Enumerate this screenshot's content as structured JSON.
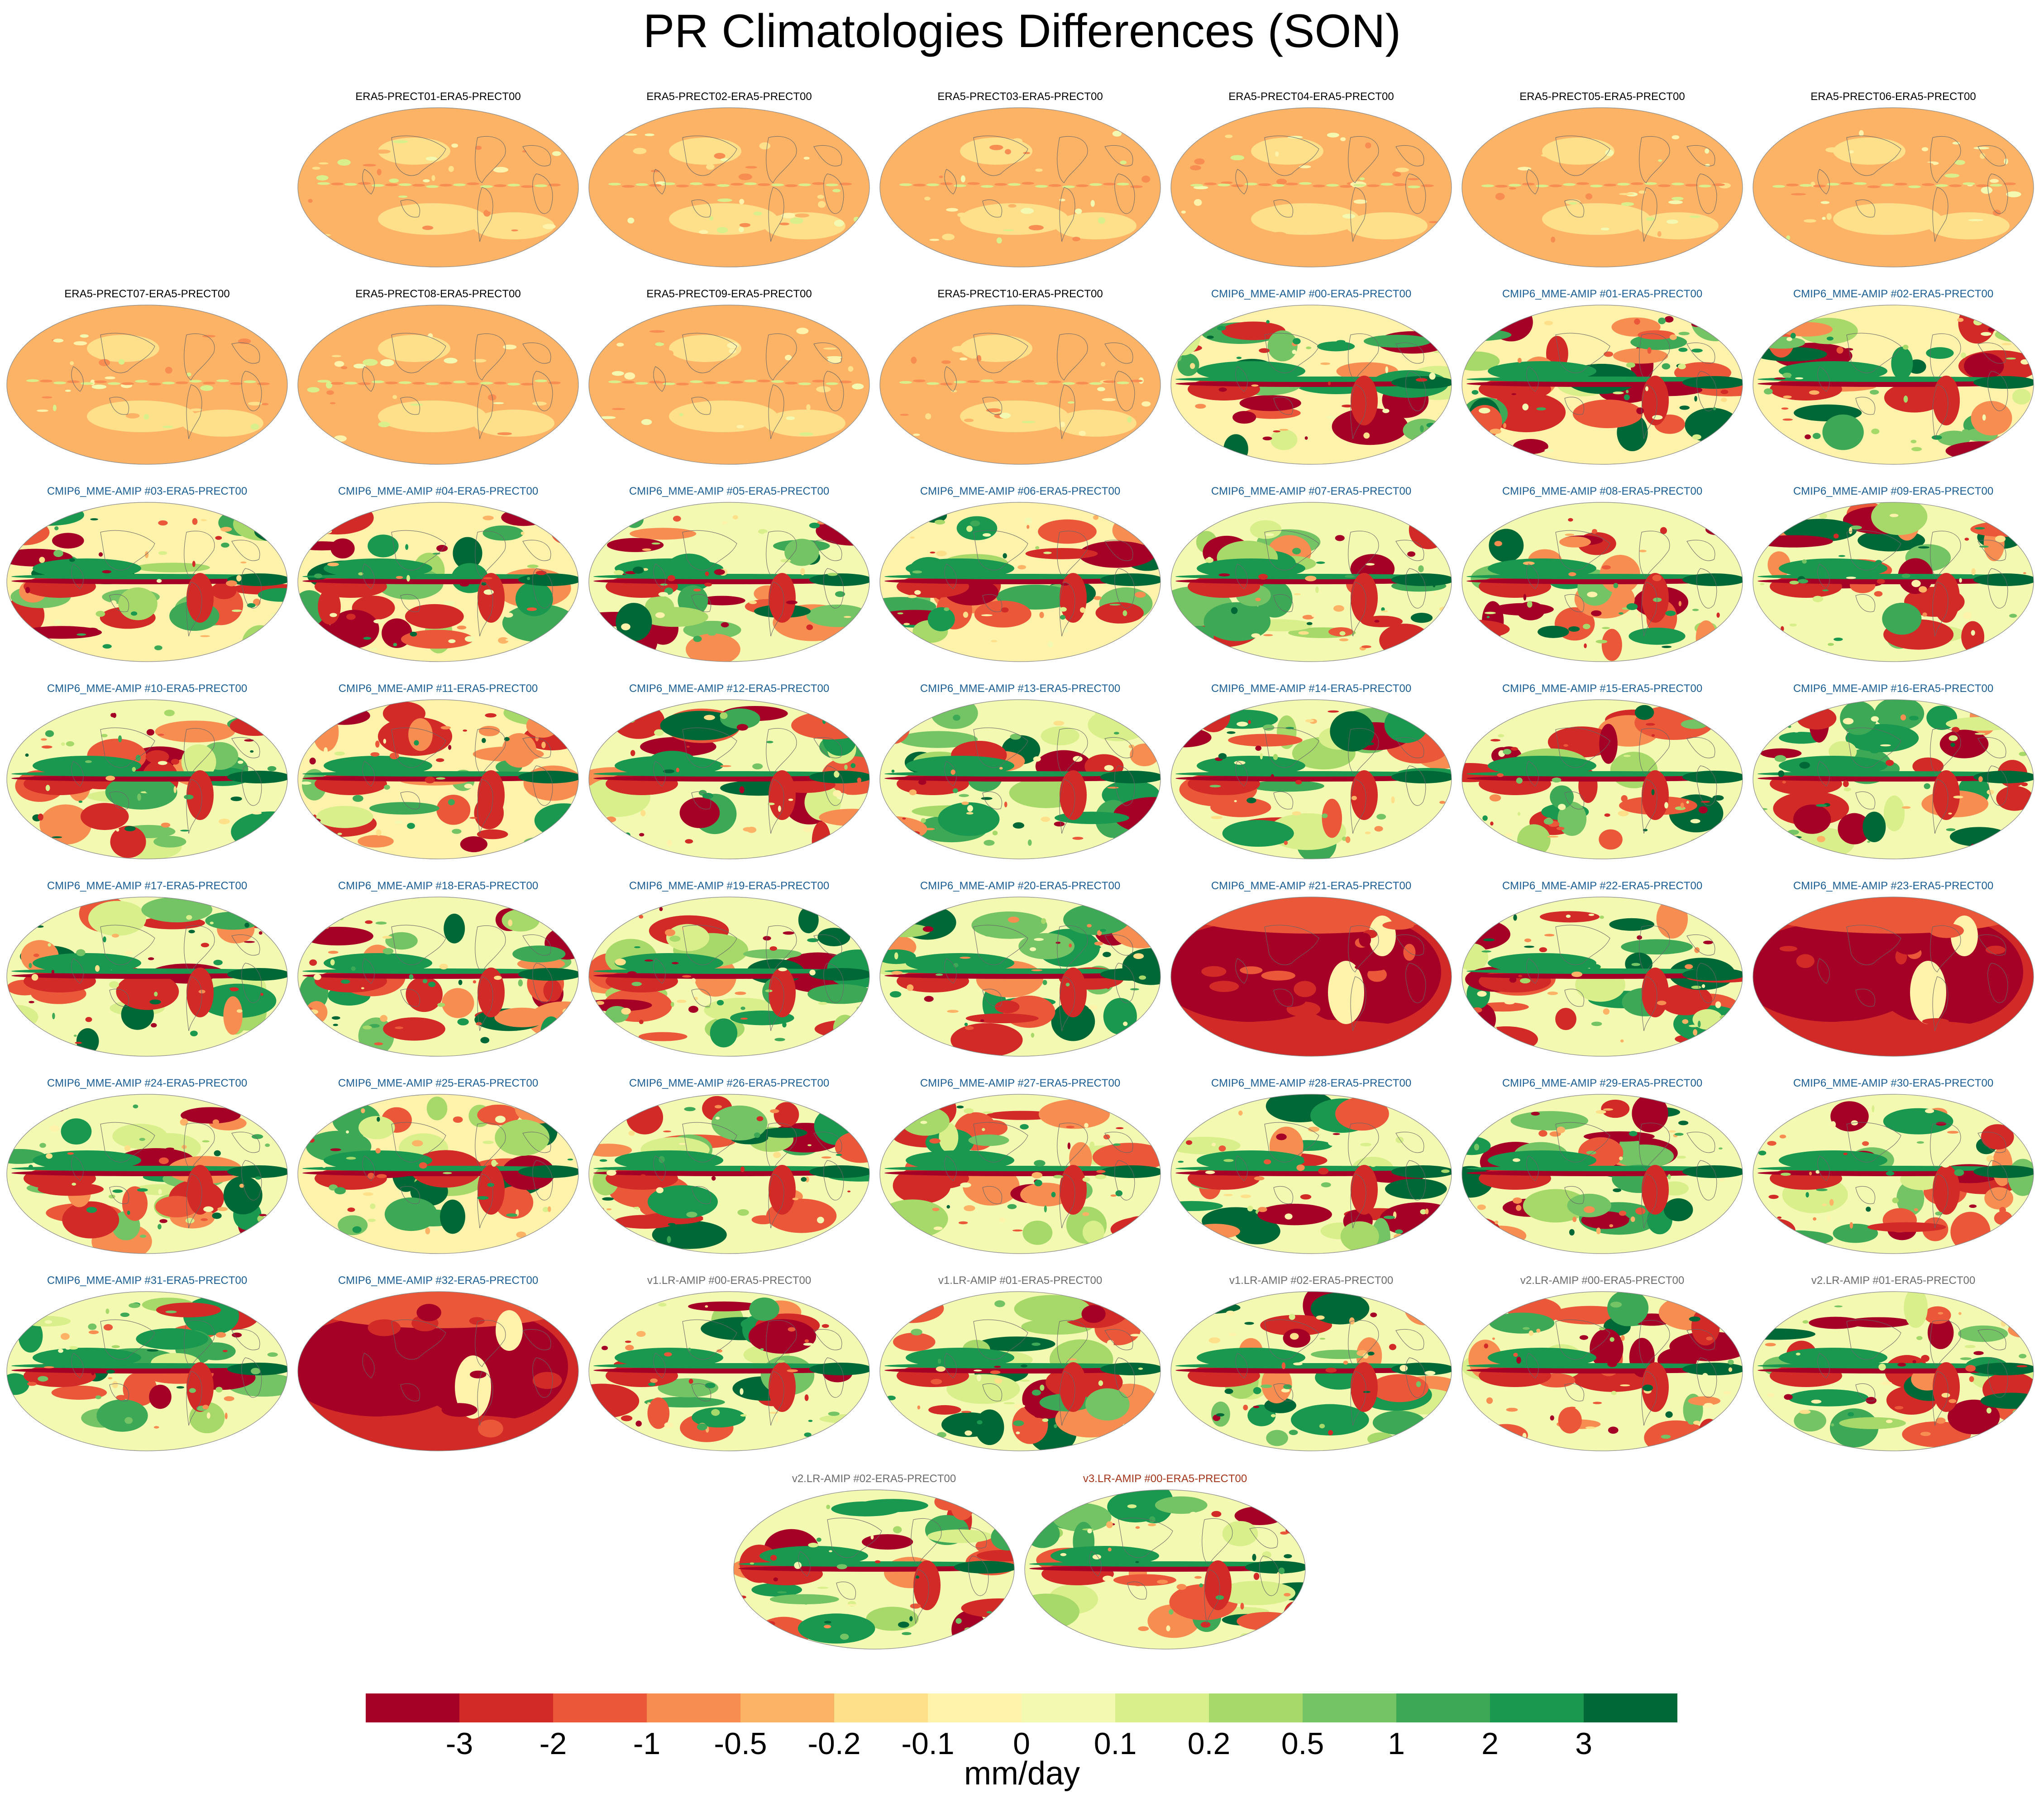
{
  "title": "PR Climatologies Differences (SON)",
  "colorbar": {
    "units": "mm/day",
    "colors": [
      "#a50026",
      "#d22a27",
      "#ea5739",
      "#f88d52",
      "#fdb366",
      "#fee08b",
      "#fff2aa",
      "#f4f9b1",
      "#d9ef8b",
      "#a6d96a",
      "#74c365",
      "#3da957",
      "#1a9850",
      "#006837"
    ],
    "tick_labels": [
      "-3",
      "-2",
      "-1",
      "-0.5",
      "-0.2",
      "-0.1",
      "0",
      "0.1",
      "0.2",
      "0.5",
      "1",
      "2",
      "3"
    ]
  },
  "title_colors": {
    "era5": "#000000",
    "cmip6": "#1a5d93",
    "v1v2": "#6b6b6b",
    "v3": "#a3341a"
  },
  "panels": [
    {
      "label": "ERA5-PRECT01-ERA5-PRECT00",
      "group": "era5",
      "bias": "weak",
      "mean_level": 4
    },
    {
      "label": "ERA5-PRECT02-ERA5-PRECT00",
      "group": "era5",
      "bias": "weak",
      "mean_level": 4
    },
    {
      "label": "ERA5-PRECT03-ERA5-PRECT00",
      "group": "era5",
      "bias": "weak",
      "mean_level": 4
    },
    {
      "label": "ERA5-PRECT04-ERA5-PRECT00",
      "group": "era5",
      "bias": "weak",
      "mean_level": 4
    },
    {
      "label": "ERA5-PRECT05-ERA5-PRECT00",
      "group": "era5",
      "bias": "weak",
      "mean_level": 4
    },
    {
      "label": "ERA5-PRECT06-ERA5-PRECT00",
      "group": "era5",
      "bias": "weak",
      "mean_level": 4
    },
    {
      "label": "ERA5-PRECT07-ERA5-PRECT00",
      "group": "era5",
      "bias": "weak",
      "mean_level": 4
    },
    {
      "label": "ERA5-PRECT08-ERA5-PRECT00",
      "group": "era5",
      "bias": "weak",
      "mean_level": 4
    },
    {
      "label": "ERA5-PRECT09-ERA5-PRECT00",
      "group": "era5",
      "bias": "weak",
      "mean_level": 4
    },
    {
      "label": "ERA5-PRECT10-ERA5-PRECT00",
      "group": "era5",
      "bias": "weak",
      "mean_level": 4
    },
    {
      "label": "CMIP6_MME-AMIP  #00-ERA5-PRECT00",
      "group": "cmip6",
      "bias": "model",
      "mean_level": 6
    },
    {
      "label": "CMIP6_MME-AMIP  #01-ERA5-PRECT00",
      "group": "cmip6",
      "bias": "model",
      "mean_level": 6
    },
    {
      "label": "CMIP6_MME-AMIP  #02-ERA5-PRECT00",
      "group": "cmip6",
      "bias": "model",
      "mean_level": 6
    },
    {
      "label": "CMIP6_MME-AMIP  #03-ERA5-PRECT00",
      "group": "cmip6",
      "bias": "model",
      "mean_level": 6
    },
    {
      "label": "CMIP6_MME-AMIP  #04-ERA5-PRECT00",
      "group": "cmip6",
      "bias": "model",
      "mean_level": 6
    },
    {
      "label": "CMIP6_MME-AMIP  #05-ERA5-PRECT00",
      "group": "cmip6",
      "bias": "model",
      "mean_level": 7
    },
    {
      "label": "CMIP6_MME-AMIP  #06-ERA5-PRECT00",
      "group": "cmip6",
      "bias": "model",
      "mean_level": 6
    },
    {
      "label": "CMIP6_MME-AMIP  #07-ERA5-PRECT00",
      "group": "cmip6",
      "bias": "model",
      "mean_level": 7
    },
    {
      "label": "CMIP6_MME-AMIP  #08-ERA5-PRECT00",
      "group": "cmip6",
      "bias": "model",
      "mean_level": 7
    },
    {
      "label": "CMIP6_MME-AMIP  #09-ERA5-PRECT00",
      "group": "cmip6",
      "bias": "model",
      "mean_level": 7
    },
    {
      "label": "CMIP6_MME-AMIP  #10-ERA5-PRECT00",
      "group": "cmip6",
      "bias": "model",
      "mean_level": 7
    },
    {
      "label": "CMIP6_MME-AMIP  #11-ERA5-PRECT00",
      "group": "cmip6",
      "bias": "model",
      "mean_level": 6
    },
    {
      "label": "CMIP6_MME-AMIP  #12-ERA5-PRECT00",
      "group": "cmip6",
      "bias": "model",
      "mean_level": 7
    },
    {
      "label": "CMIP6_MME-AMIP  #13-ERA5-PRECT00",
      "group": "cmip6",
      "bias": "model",
      "mean_level": 7
    },
    {
      "label": "CMIP6_MME-AMIP  #14-ERA5-PRECT00",
      "group": "cmip6",
      "bias": "model",
      "mean_level": 7
    },
    {
      "label": "CMIP6_MME-AMIP  #15-ERA5-PRECT00",
      "group": "cmip6",
      "bias": "model",
      "mean_level": 7
    },
    {
      "label": "CMIP6_MME-AMIP  #16-ERA5-PRECT00",
      "group": "cmip6",
      "bias": "model",
      "mean_level": 7
    },
    {
      "label": "CMIP6_MME-AMIP  #17-ERA5-PRECT00",
      "group": "cmip6",
      "bias": "model",
      "mean_level": 7
    },
    {
      "label": "CMIP6_MME-AMIP  #18-ERA5-PRECT00",
      "group": "cmip6",
      "bias": "model",
      "mean_level": 7
    },
    {
      "label": "CMIP6_MME-AMIP  #19-ERA5-PRECT00",
      "group": "cmip6",
      "bias": "model",
      "mean_level": 7
    },
    {
      "label": "CMIP6_MME-AMIP  #20-ERA5-PRECT00",
      "group": "cmip6",
      "bias": "model",
      "mean_level": 7
    },
    {
      "label": "CMIP6_MME-AMIP  #21-ERA5-PRECT00",
      "group": "cmip6",
      "bias": "dry",
      "mean_level": 1
    },
    {
      "label": "CMIP6_MME-AMIP  #22-ERA5-PRECT00",
      "group": "cmip6",
      "bias": "model",
      "mean_level": 7
    },
    {
      "label": "CMIP6_MME-AMIP  #23-ERA5-PRECT00",
      "group": "cmip6",
      "bias": "dry",
      "mean_level": 1
    },
    {
      "label": "CMIP6_MME-AMIP  #24-ERA5-PRECT00",
      "group": "cmip6",
      "bias": "model",
      "mean_level": 7
    },
    {
      "label": "CMIP6_MME-AMIP  #25-ERA5-PRECT00",
      "group": "cmip6",
      "bias": "model",
      "mean_level": 6
    },
    {
      "label": "CMIP6_MME-AMIP  #26-ERA5-PRECT00",
      "group": "cmip6",
      "bias": "model",
      "mean_level": 7
    },
    {
      "label": "CMIP6_MME-AMIP  #27-ERA5-PRECT00",
      "group": "cmip6",
      "bias": "model",
      "mean_level": 7
    },
    {
      "label": "CMIP6_MME-AMIP  #28-ERA5-PRECT00",
      "group": "cmip6",
      "bias": "model",
      "mean_level": 7
    },
    {
      "label": "CMIP6_MME-AMIP  #29-ERA5-PRECT00",
      "group": "cmip6",
      "bias": "model",
      "mean_level": 7
    },
    {
      "label": "CMIP6_MME-AMIP  #30-ERA5-PRECT00",
      "group": "cmip6",
      "bias": "model",
      "mean_level": 7
    },
    {
      "label": "CMIP6_MME-AMIP  #31-ERA5-PRECT00",
      "group": "cmip6",
      "bias": "model",
      "mean_level": 7
    },
    {
      "label": "CMIP6_MME-AMIP  #32-ERA5-PRECT00",
      "group": "cmip6",
      "bias": "dry",
      "mean_level": 1
    },
    {
      "label": "v1.LR-AMIP  #00-ERA5-PRECT00",
      "group": "v1v2",
      "bias": "model",
      "mean_level": 7
    },
    {
      "label": "v1.LR-AMIP  #01-ERA5-PRECT00",
      "group": "v1v2",
      "bias": "model",
      "mean_level": 7
    },
    {
      "label": "v1.LR-AMIP  #02-ERA5-PRECT00",
      "group": "v1v2",
      "bias": "model",
      "mean_level": 7
    },
    {
      "label": "v2.LR-AMIP  #00-ERA5-PRECT00",
      "group": "v1v2",
      "bias": "model",
      "mean_level": 7
    },
    {
      "label": "v2.LR-AMIP  #01-ERA5-PRECT00",
      "group": "v1v2",
      "bias": "model",
      "mean_level": 7
    },
    {
      "label": "v2.LR-AMIP  #02-ERA5-PRECT00",
      "group": "v1v2",
      "bias": "model",
      "mean_level": 7
    },
    {
      "label": "v3.LR-AMIP  #00-ERA5-PRECT00",
      "group": "v3",
      "bias": "model",
      "mean_level": 7
    }
  ]
}
